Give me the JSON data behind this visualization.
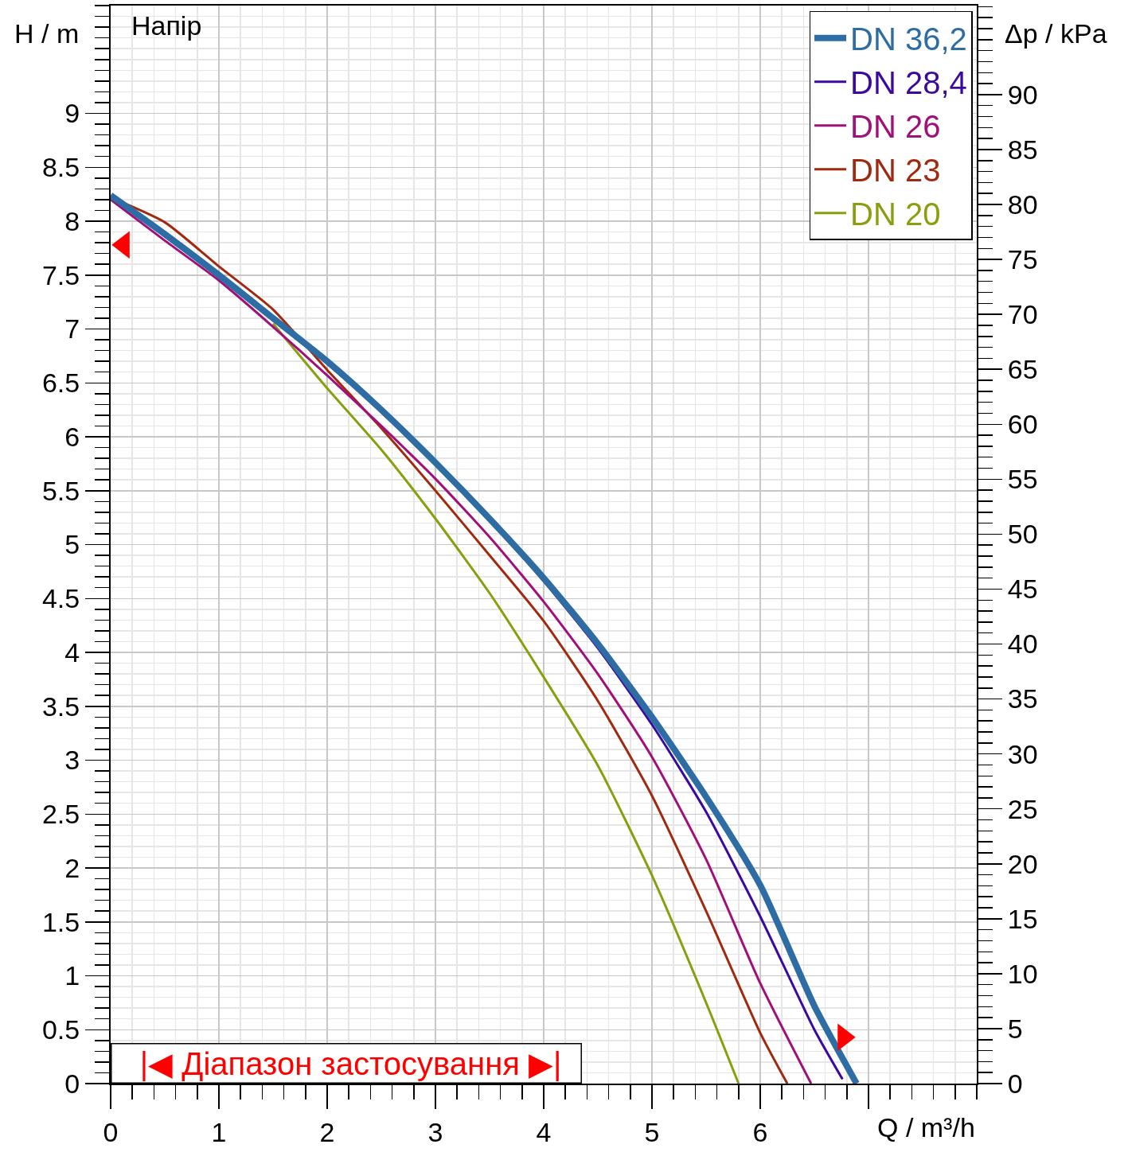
{
  "chart_data": {
    "type": "line",
    "title": "Напір",
    "xlabel": "Q / m³/h",
    "ylabel": "H / m",
    "y2label": "Δp / kPa",
    "xlim": [
      0,
      8
    ],
    "xticks": [
      0,
      1,
      2,
      3,
      4,
      5,
      6,
      {
        "value": 7,
        "label": null
      }
    ],
    "ylim": [
      0,
      10
    ],
    "yticks": [
      0,
      0.5,
      1,
      1.5,
      2,
      2.5,
      3,
      3.5,
      4,
      4.5,
      5,
      5.5,
      6,
      6.5,
      7,
      7.5,
      8,
      8.5,
      9
    ],
    "y2lim": [
      0,
      98.1
    ],
    "y2ticks": [
      0,
      5,
      10,
      15,
      20,
      25,
      30,
      35,
      40,
      45,
      50,
      55,
      60,
      65,
      70,
      75,
      80,
      85,
      90
    ],
    "grid": true,
    "legend": "top right",
    "marker": "none",
    "line_style": "solid",
    "annotations": [
      "|◀ Діапазон застосування ▶|"
    ],
    "series": [
      {
        "name": "DN 20",
        "color": "#8a9e10",
        "x": [
          1.5,
          2,
          2.5,
          3,
          3.5,
          4,
          4.5,
          5,
          5.5,
          5.8
        ],
        "values": [
          7.05,
          6.45,
          5.88,
          5.24,
          4.55,
          3.77,
          2.95,
          1.93,
          0.75,
          0
        ]
      },
      {
        "name": "DN 23",
        "color": "#a02a10",
        "x": [
          0,
          0.5,
          1,
          1.5,
          2,
          2.5,
          3,
          3.5,
          4,
          4.5,
          5,
          5.5,
          6,
          6.25
        ],
        "values": [
          8.22,
          7.99,
          7.58,
          7.18,
          6.62,
          6.08,
          5.5,
          4.9,
          4.29,
          3.55,
          2.67,
          1.6,
          0.47,
          0
        ]
      },
      {
        "name": "DN 26",
        "color": "#a0107a",
        "x": [
          0,
          0.5,
          1,
          1.5,
          2,
          2.5,
          3,
          3.5,
          4,
          4.5,
          5,
          5.5,
          6,
          6.47
        ],
        "values": [
          8.2,
          7.82,
          7.45,
          7.02,
          6.57,
          6.1,
          5.61,
          5.07,
          4.47,
          3.8,
          3.03,
          2.08,
          0.93,
          0
        ]
      },
      {
        "name": "DN 28,4",
        "color": "#3a0aa0",
        "x": [
          0,
          0.5,
          1,
          1.5,
          2,
          2.5,
          3,
          3.5,
          4,
          4.5,
          5,
          5.5,
          6,
          6.5,
          6.76
        ],
        "values": [
          8.22,
          7.86,
          7.48,
          7.08,
          6.68,
          6.23,
          5.74,
          5.22,
          4.66,
          4.04,
          3.33,
          2.52,
          1.55,
          0.5,
          0.04
        ]
      },
      {
        "name": "DN 36,2",
        "color": "#2e6da4",
        "x": [
          0,
          0.5,
          1,
          1.5,
          2,
          2.5,
          3,
          3.5,
          4,
          4.5,
          5,
          5.5,
          6,
          6.5,
          6.89
        ],
        "values": [
          8.24,
          7.88,
          7.5,
          7.1,
          6.7,
          6.25,
          5.76,
          5.24,
          4.69,
          4.08,
          3.4,
          2.66,
          1.84,
          0.72,
          0
        ]
      },
      {
        "type": "scatter",
        "color": "#ff0000",
        "marker": "triangle",
        "x": [
          0.12,
          6.77
        ],
        "values": [
          7.78,
          0.43
        ]
      }
    ]
  }
}
